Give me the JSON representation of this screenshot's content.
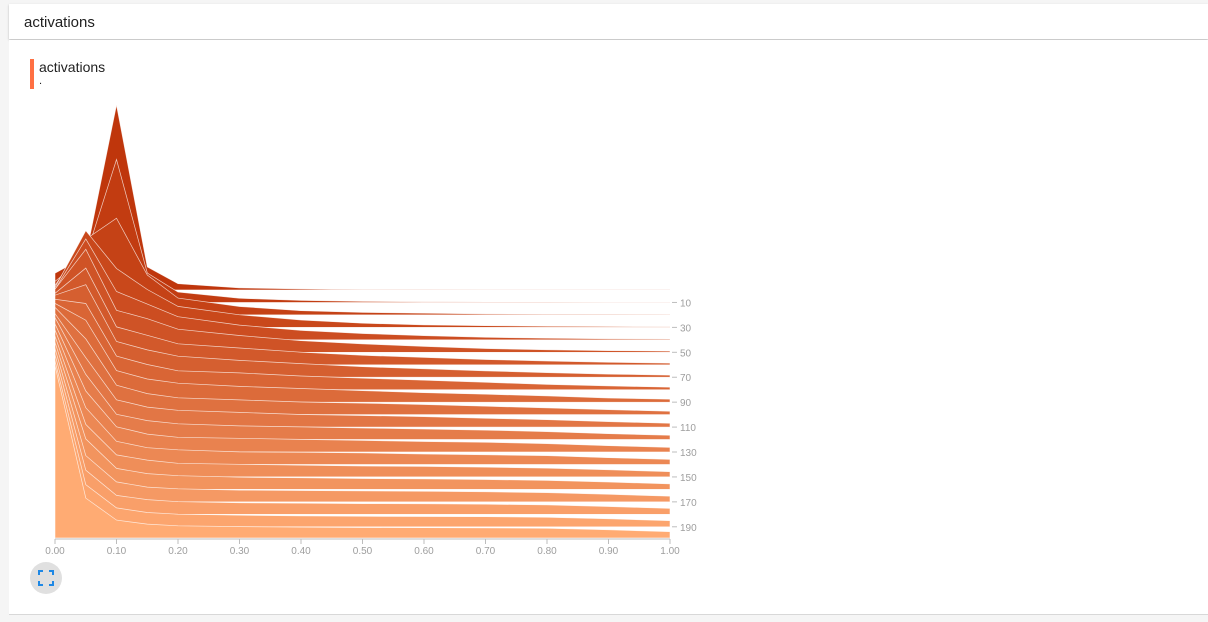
{
  "header": {
    "title": "activations"
  },
  "card": {
    "tag_title": "activations",
    "tag_subtitle": "."
  },
  "fullscreen_icon": "fullscreen-icon",
  "colors": {
    "accent": "#ff7043",
    "ridge_dark": "#bf360c",
    "ridge_light": "#ffab73"
  },
  "chart_data": {
    "type": "area",
    "mode": "offset-histogram",
    "x_ticks": [
      "0.00",
      "0.10",
      "0.20",
      "0.30",
      "0.40",
      "0.50",
      "0.60",
      "0.70",
      "0.80",
      "0.90",
      "1.00"
    ],
    "xlim": [
      0,
      1
    ],
    "step_ticks": [
      "10",
      "30",
      "50",
      "70",
      "90",
      "110",
      "130",
      "150",
      "170",
      "190"
    ],
    "step_range": [
      0,
      199
    ],
    "bin_centers": [
      0.0,
      0.05,
      0.1,
      0.15,
      0.2,
      0.3,
      0.4,
      0.5,
      0.6,
      0.7,
      0.8,
      0.9,
      1.0
    ],
    "series": [
      {
        "step": 0,
        "values": [
          0.8,
          1.6,
          8.8,
          1.1,
          0.3,
          0.1,
          0.05,
          0.02,
          0.02,
          0.01,
          0.01,
          0.01,
          0.01
        ]
      },
      {
        "step": 10,
        "values": [
          1.0,
          2.2,
          6.8,
          1.4,
          0.5,
          0.2,
          0.1,
          0.05,
          0.03,
          0.02,
          0.02,
          0.01,
          0.01
        ]
      },
      {
        "step": 20,
        "values": [
          1.4,
          3.6,
          4.6,
          1.9,
          0.8,
          0.4,
          0.2,
          0.12,
          0.08,
          0.05,
          0.04,
          0.03,
          0.02
        ]
      },
      {
        "step": 30,
        "values": [
          1.9,
          4.6,
          2.8,
          1.8,
          1.0,
          0.6,
          0.35,
          0.2,
          0.12,
          0.08,
          0.05,
          0.04,
          0.03
        ]
      },
      {
        "step": 40,
        "values": [
          2.4,
          4.8,
          2.3,
          1.7,
          1.1,
          0.7,
          0.45,
          0.3,
          0.2,
          0.12,
          0.08,
          0.05,
          0.04
        ]
      },
      {
        "step": 50,
        "values": [
          3.0,
          4.9,
          2.0,
          1.6,
          1.1,
          0.8,
          0.55,
          0.4,
          0.28,
          0.18,
          0.12,
          0.08,
          0.06
        ]
      },
      {
        "step": 60,
        "values": [
          3.4,
          4.6,
          1.8,
          1.4,
          1.0,
          0.8,
          0.6,
          0.45,
          0.35,
          0.25,
          0.18,
          0.12,
          0.08
        ]
      },
      {
        "step": 70,
        "values": [
          3.9,
          4.4,
          1.7,
          1.3,
          1.0,
          0.8,
          0.65,
          0.5,
          0.4,
          0.3,
          0.22,
          0.15,
          0.1
        ]
      },
      {
        "step": 80,
        "values": [
          4.3,
          4.1,
          1.6,
          1.2,
          0.9,
          0.8,
          0.65,
          0.55,
          0.45,
          0.35,
          0.25,
          0.18,
          0.12
        ]
      },
      {
        "step": 90,
        "values": [
          4.7,
          3.9,
          1.5,
          1.1,
          0.9,
          0.75,
          0.65,
          0.55,
          0.45,
          0.38,
          0.3,
          0.2,
          0.14
        ]
      },
      {
        "step": 100,
        "values": [
          5.1,
          3.6,
          1.4,
          1.0,
          0.8,
          0.7,
          0.6,
          0.55,
          0.48,
          0.4,
          0.32,
          0.24,
          0.16
        ]
      },
      {
        "step": 110,
        "values": [
          5.4,
          3.3,
          1.3,
          0.95,
          0.8,
          0.7,
          0.6,
          0.55,
          0.5,
          0.42,
          0.35,
          0.26,
          0.18
        ]
      },
      {
        "step": 120,
        "values": [
          5.8,
          3.1,
          1.2,
          0.9,
          0.75,
          0.65,
          0.6,
          0.55,
          0.5,
          0.45,
          0.38,
          0.28,
          0.2
        ]
      },
      {
        "step": 130,
        "values": [
          6.1,
          2.9,
          1.2,
          0.85,
          0.7,
          0.65,
          0.6,
          0.55,
          0.5,
          0.46,
          0.4,
          0.3,
          0.22
        ]
      },
      {
        "step": 140,
        "values": [
          6.4,
          2.7,
          1.1,
          0.8,
          0.7,
          0.6,
          0.58,
          0.55,
          0.5,
          0.46,
          0.42,
          0.32,
          0.24
        ]
      },
      {
        "step": 150,
        "values": [
          6.7,
          2.5,
          1.05,
          0.8,
          0.65,
          0.6,
          0.56,
          0.52,
          0.5,
          0.47,
          0.42,
          0.34,
          0.25
        ]
      },
      {
        "step": 160,
        "values": [
          7.0,
          2.4,
          1.0,
          0.75,
          0.65,
          0.58,
          0.55,
          0.52,
          0.5,
          0.47,
          0.43,
          0.35,
          0.26
        ]
      },
      {
        "step": 170,
        "values": [
          7.3,
          2.2,
          0.95,
          0.7,
          0.62,
          0.56,
          0.54,
          0.52,
          0.5,
          0.48,
          0.44,
          0.36,
          0.27
        ]
      },
      {
        "step": 180,
        "values": [
          7.6,
          2.1,
          0.9,
          0.7,
          0.6,
          0.55,
          0.53,
          0.51,
          0.5,
          0.48,
          0.45,
          0.37,
          0.28
        ]
      },
      {
        "step": 190,
        "values": [
          7.9,
          2.0,
          0.9,
          0.68,
          0.6,
          0.55,
          0.52,
          0.5,
          0.49,
          0.48,
          0.45,
          0.38,
          0.29
        ]
      },
      {
        "step": 199,
        "values": [
          8.2,
          1.9,
          0.85,
          0.66,
          0.58,
          0.54,
          0.52,
          0.5,
          0.49,
          0.48,
          0.46,
          0.39,
          0.3
        ]
      }
    ]
  }
}
